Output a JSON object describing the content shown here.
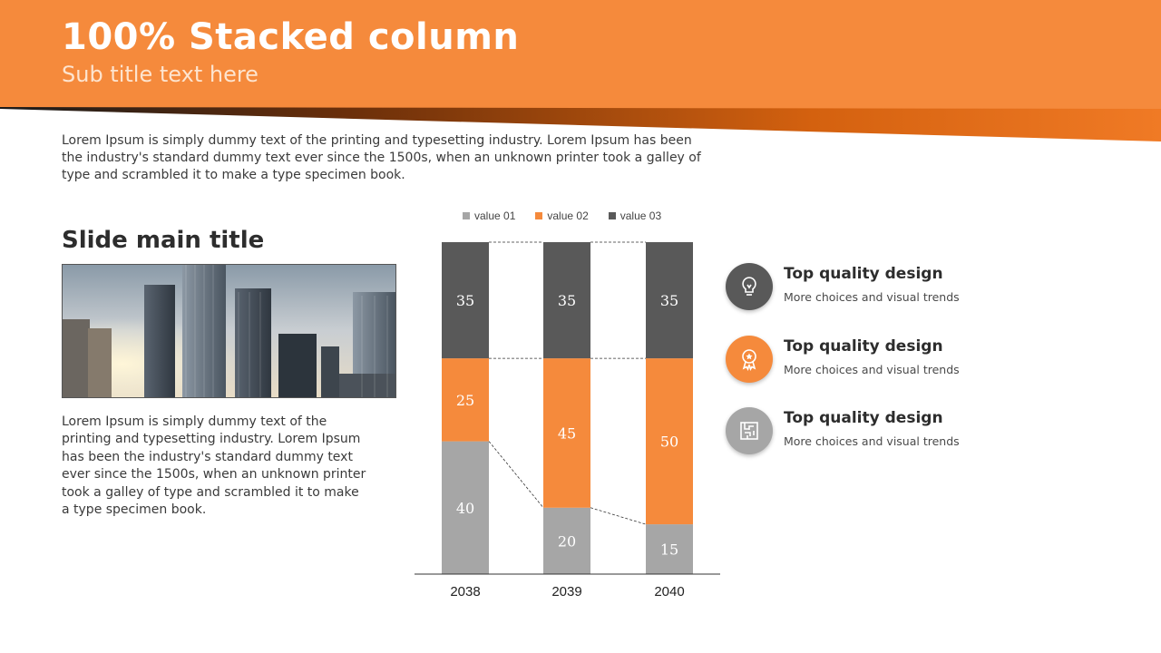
{
  "colors": {
    "accent": "#f58a3c",
    "accent_dark": "#c2500f",
    "gray_light": "#a6a6a6",
    "gray_dark": "#595959"
  },
  "header": {
    "title": "100% Stacked column",
    "subtitle": "Sub title text here"
  },
  "intro_text": "Lorem Ipsum is simply dummy text of the printing and typesetting industry. Lorem Ipsum has been the industry's standard dummy text ever since the 1500s, when an unknown printer took a galley of type and scrambled it to make a type specimen book.",
  "left_panel": {
    "title": "Slide main title",
    "body": "Lorem Ipsum is simply dummy text of the printing and typesetting industry. Lorem Ipsum has been the industry's standard dummy text ever since the 1500s, when an unknown printer took a galley of type and scrambled it to make a type specimen book."
  },
  "features": [
    {
      "title": "Top quality design",
      "desc": "More choices and visual trends",
      "icon": "lightbulb-icon",
      "color": "#595959"
    },
    {
      "title": "Top quality design",
      "desc": "More choices and visual trends",
      "icon": "award-medal-icon",
      "color": "#f58a3c"
    },
    {
      "title": "Top quality design",
      "desc": "More choices and visual trends",
      "icon": "maze-icon",
      "color": "#a6a6a6"
    }
  ],
  "chart_data": {
    "type": "bar",
    "stacking": "percent",
    "categories": [
      "2038",
      "2039",
      "2040"
    ],
    "series": [
      {
        "name": "value 01",
        "values": [
          40,
          20,
          15
        ],
        "color": "#a6a6a6"
      },
      {
        "name": "value 02",
        "values": [
          25,
          45,
          50
        ],
        "color": "#f58a3c"
      },
      {
        "name": "value 03",
        "values": [
          35,
          35,
          35
        ],
        "color": "#595959"
      }
    ],
    "legend": "top",
    "grid": false,
    "series_lines": true
  }
}
